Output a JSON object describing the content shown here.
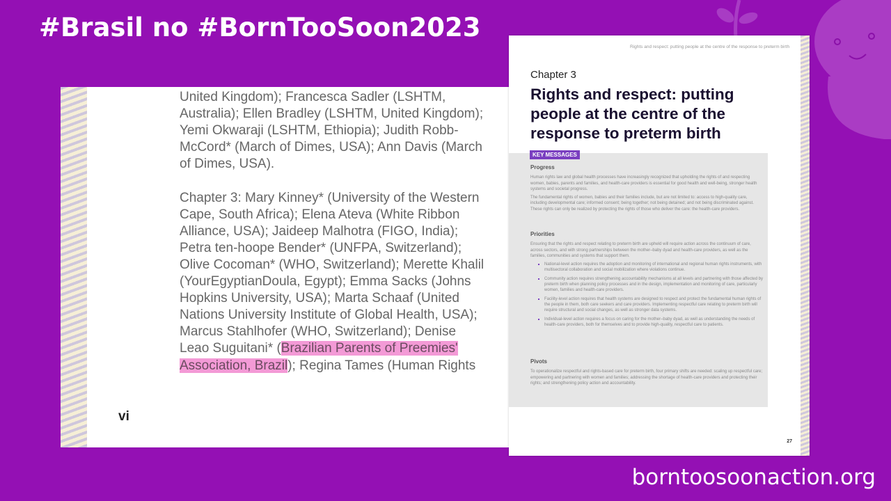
{
  "header": {
    "title": "#Brasil no #BornTooSoon2023"
  },
  "footer": {
    "url": "borntoosoonaction.org"
  },
  "left_page": {
    "lines": [
      {
        "pre": "United Kingdom); Francesca Sadler (LSHTM,"
      },
      {
        "pre": "Australia); Ellen Bradley (LSHTM, United Kingdom);"
      },
      {
        "pre": "Yemi Okwaraji (LSHTM, Ethiopia); Judith Robb-"
      },
      {
        "pre": "McCord* (March of Dimes, USA); Ann Davis (March"
      },
      {
        "pre": "of Dimes, USA)."
      },
      {
        "pre": ""
      },
      {
        "pre": "Chapter 3: Mary Kinney* (University of the Western"
      },
      {
        "pre": "Cape, South Africa); Elena Ateva (White Ribbon"
      },
      {
        "pre": "Alliance, USA); Jaideep Malhotra (FIGO, India);"
      },
      {
        "pre": "Petra ten-hoope Bender* (UNFPA, Switzerland);"
      },
      {
        "pre": "Olive Cocoman* (WHO, Switzerland); Merette Khalil"
      },
      {
        "pre": "(YourEgyptianDoula, Egypt); Emma Sacks (Johns"
      },
      {
        "pre": "Hopkins University, USA); Marta Schaaf (United"
      },
      {
        "pre": "Nations University Institute of Global Health, USA);"
      },
      {
        "pre": "Marcus Stahlhofer (WHO, Switzerland); Denise"
      },
      {
        "pre": "Leao Suguitani* (",
        "hl": "Brazilian Parents of Preemies'",
        "post": ""
      },
      {
        "pre": "",
        "hl": "Association, Brazil",
        "post": "); Regina Tames (Human Rights"
      }
    ],
    "page_number": "vi",
    "highlight_color": "#f39ad6"
  },
  "right_page": {
    "running_header": "Rights and respect: putting people at the centre of the response to preterm birth",
    "chapter": "Chapter 3",
    "title": "Rights and respect: putting people at the centre of the response to preterm birth",
    "key_messages_label": "KEY MESSAGES",
    "progress": {
      "heading": "Progress",
      "paragraphs": [
        "Human rights law and global health processes have increasingly recognized that upholding the rights of and respecting women, babies, parents and families, and health-care providers is essential for good health and well-being, stronger health systems and societal progress.",
        "The fundamental rights of women, babies and their families include, but are not limited to: access to high-quality care, including developmental care; informed consent; being together; not being detained; and not being discriminated against. These rights can only be realized by protecting the rights of those who deliver the care: the health-care providers."
      ]
    },
    "priorities": {
      "heading": "Priorities",
      "intro": "Ensuring that the rights and respect relating to preterm birth are upheld will require action across the continuum of care, across sectors, and with strong partnerships between the mother–baby dyad and health-care providers, as well as the families, communities and systems that support them.",
      "bullets": [
        "National-level action requires the adoption and monitoring of international and regional human rights instruments, with multisectoral collaboration and social mobilization where violations continue.",
        "Community action requires strengthening accountability mechanisms at all levels and partnering with those affected by preterm birth when planning policy processes and in the design, implementation and monitoring of care, particularly women, families and health-care providers.",
        "Facility-level action requires that health systems are designed to respect and protect the fundamental human rights of the people in them, both care seekers and care providers. Implementing respectful care relating to preterm birth will require structural and social changes, as well as stronger data systems.",
        "Individual-level action requires a focus on caring for the mother–baby dyad, as well as understanding the needs of health-care providers, both for themselves and to provide high-quality, respectful care to patients."
      ]
    },
    "pivots": {
      "heading": "Pivots",
      "text": "To operationalize respectful and rights-based care for preterm birth, four primary shifts are needed: scaling up respectful care; empowering and partnering with women and families; addressing the shortage of health-care providers and protecting their rights; and strengthening policy action and accountability."
    },
    "page_number": "27"
  },
  "colors": {
    "background": "#9410b4",
    "accent": "#7a3fc0"
  }
}
